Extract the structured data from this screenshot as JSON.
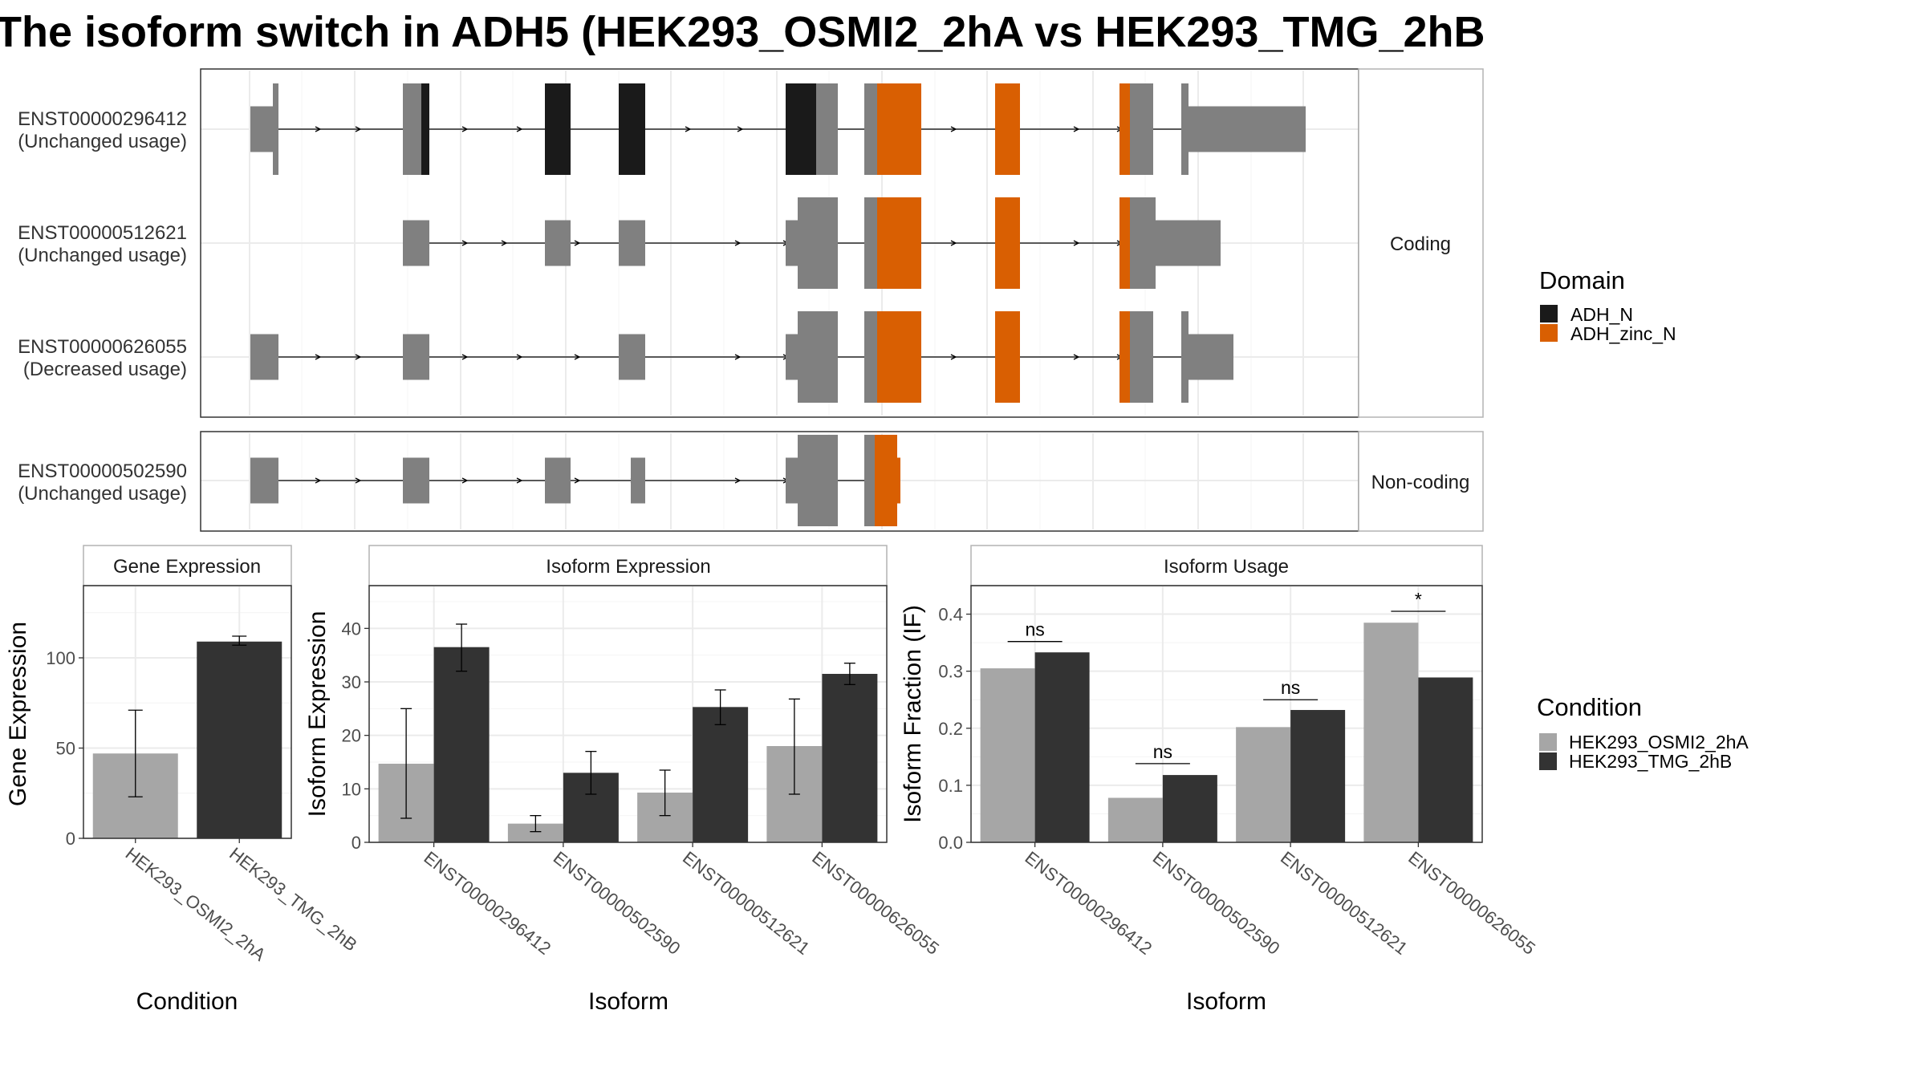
{
  "title": "The isoform switch in ADH5 (HEK293_OSMI2_2hA vs HEK293_TMG_2hB",
  "colors": {
    "utr": "#808080",
    "adh_n": "#1a1a1a",
    "adh_zinc_n": "#d95f02",
    "cond_a": "#a6a6a6",
    "cond_b": "#333333",
    "grid": "#ebebeb",
    "border": "#333333"
  },
  "domain_legend": {
    "title": "Domain",
    "entries": [
      {
        "label": "ADH_N",
        "color": "#1a1a1a"
      },
      {
        "label": "ADH_zinc_N",
        "color": "#d95f02"
      }
    ]
  },
  "condition_legend": {
    "title": "Condition",
    "entries": [
      {
        "label": "HEK293_OSMI2_2hA",
        "color": "#a6a6a6"
      },
      {
        "label": "HEK293_TMG_2hB",
        "color": "#333333"
      }
    ]
  },
  "structure": {
    "facets": [
      {
        "strip": "Coding",
        "rows": [
          {
            "id": "ENST00000296412",
            "usage": "(Unchanged usage)"
          },
          {
            "id": "ENST00000512621",
            "usage": "(Unchanged usage)"
          },
          {
            "id": "ENST00000626055",
            "usage": "(Decreased usage)"
          }
        ]
      },
      {
        "strip": "Non-coding",
        "rows": [
          {
            "id": "ENST00000502590",
            "usage": "(Unchanged usage)"
          }
        ]
      }
    ]
  },
  "chart_data": [
    {
      "type": "bar",
      "title": "Gene Expression",
      "xlabel": "Condition",
      "ylabel": "Gene Expression",
      "ylim": [
        0,
        140
      ],
      "yticks": [
        0,
        50,
        100
      ],
      "categories": [
        "HEK293_OSMI2_2hA",
        "HEK293_TMG_2hB"
      ],
      "values": [
        47,
        109
      ],
      "errors": [
        [
          23,
          71
        ],
        [
          107,
          112
        ]
      ],
      "colors": [
        "#a6a6a6",
        "#333333"
      ]
    },
    {
      "type": "bar",
      "title": "Isoform Expression",
      "xlabel": "Isoform",
      "ylabel": "Isoform Expression",
      "ylim": [
        0,
        48
      ],
      "yticks": [
        0,
        10,
        20,
        30,
        40
      ],
      "categories": [
        "ENST00000296412",
        "ENST00000502590",
        "ENST00000512621",
        "ENST00000626055"
      ],
      "series": [
        {
          "name": "HEK293_OSMI2_2hA",
          "values": [
            14.7,
            3.5,
            9.3,
            18
          ],
          "errors": [
            [
              4.5,
              25
            ],
            [
              2,
              5
            ],
            [
              5,
              13.5
            ],
            [
              9,
              26.8
            ]
          ]
        },
        {
          "name": "HEK293_TMG_2hB",
          "values": [
            36.5,
            13,
            25.3,
            31.5
          ],
          "errors": [
            [
              32,
              40.8
            ],
            [
              9,
              17
            ],
            [
              22,
              28.5
            ],
            [
              29.5,
              33.5
            ]
          ]
        }
      ]
    },
    {
      "type": "bar",
      "title": "Isoform Usage",
      "xlabel": "Isoform",
      "ylabel": "Isoform Fraction (IF)",
      "ylim": [
        0,
        0.45
      ],
      "yticks": [
        "0.0",
        "0.1",
        "0.2",
        "0.3",
        "0.4"
      ],
      "categories": [
        "ENST00000296412",
        "ENST00000502590",
        "ENST00000512621",
        "ENST00000626055"
      ],
      "series": [
        {
          "name": "HEK293_OSMI2_2hA",
          "values": [
            0.305,
            0.078,
            0.202,
            0.385
          ]
        },
        {
          "name": "HEK293_TMG_2hB",
          "values": [
            0.333,
            0.118,
            0.232,
            0.289
          ]
        }
      ],
      "significance": [
        {
          "category": "ENST00000296412",
          "label": "ns",
          "y": 0.352
        },
        {
          "category": "ENST00000502590",
          "label": "ns",
          "y": 0.138
        },
        {
          "category": "ENST00000512621",
          "label": "ns",
          "y": 0.25
        },
        {
          "category": "ENST00000626055",
          "label": "*",
          "y": 0.405
        }
      ]
    }
  ]
}
